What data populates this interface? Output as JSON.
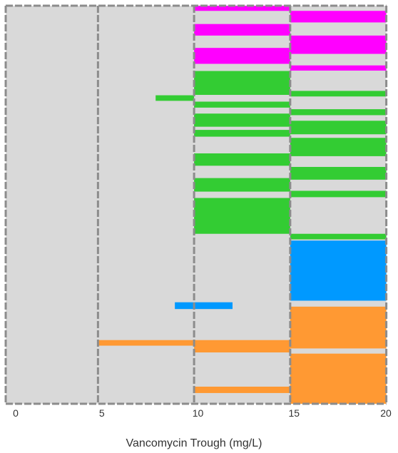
{
  "chart_data": {
    "type": "bar",
    "orientation": "horizontal-ranges",
    "xlabel": "Vancomycin Trough (mg/L)",
    "xlim": [
      0,
      20
    ],
    "xticks": [
      0,
      5,
      10,
      15,
      20
    ],
    "ylim": [
      0,
      100
    ],
    "grid": false,
    "legend": "none",
    "background_color": "#d9d9d9",
    "separator_color": "#8c8c8c",
    "separators_x": [
      0,
      4.8,
      9.8,
      14.8,
      19.8
    ],
    "colors": {
      "magenta": "#ff00ff",
      "green": "#33cc33",
      "blue": "#0099ff",
      "orange": "#ff9933"
    },
    "bars": [
      {
        "x0": 9.8,
        "x1": 14.8,
        "y0": 0.0,
        "y1": 1.3,
        "color": "magenta"
      },
      {
        "x0": 9.8,
        "x1": 14.8,
        "y0": 4.6,
        "y1": 7.5,
        "color": "magenta"
      },
      {
        "x0": 9.8,
        "x1": 14.8,
        "y0": 10.6,
        "y1": 14.6,
        "color": "magenta"
      },
      {
        "x0": 9.8,
        "x1": 14.8,
        "y0": 16.4,
        "y1": 22.4,
        "color": "green"
      },
      {
        "x0": 9.8,
        "x1": 14.8,
        "y0": 24.1,
        "y1": 25.6,
        "color": "green"
      },
      {
        "x0": 9.8,
        "x1": 14.8,
        "y0": 27.1,
        "y1": 30.4,
        "color": "green"
      },
      {
        "x0": 9.8,
        "x1": 14.8,
        "y0": 31.2,
        "y1": 32.9,
        "color": "green"
      },
      {
        "x0": 9.8,
        "x1": 14.8,
        "y0": 37.1,
        "y1": 40.2,
        "color": "green"
      },
      {
        "x0": 9.8,
        "x1": 14.8,
        "y0": 43.3,
        "y1": 46.7,
        "color": "green"
      },
      {
        "x0": 9.8,
        "x1": 14.8,
        "y0": 48.3,
        "y1": 57.3,
        "color": "green"
      },
      {
        "x0": 7.8,
        "x1": 9.8,
        "y0": 22.5,
        "y1": 23.9,
        "color": "green"
      },
      {
        "x0": 8.8,
        "x1": 11.8,
        "y0": 74.5,
        "y1": 76.2,
        "color": "blue"
      },
      {
        "x0": 4.8,
        "x1": 9.8,
        "y0": 84.0,
        "y1": 85.4,
        "color": "orange"
      },
      {
        "x0": 9.8,
        "x1": 14.8,
        "y0": 84.0,
        "y1": 87.1,
        "color": "orange"
      },
      {
        "x0": 9.8,
        "x1": 14.8,
        "y0": 95.7,
        "y1": 97.3,
        "color": "orange"
      },
      {
        "x0": 14.8,
        "x1": 19.8,
        "y0": 1.3,
        "y1": 4.2,
        "color": "magenta"
      },
      {
        "x0": 14.8,
        "x1": 19.8,
        "y0": 7.5,
        "y1": 12.1,
        "color": "magenta"
      },
      {
        "x0": 14.8,
        "x1": 19.8,
        "y0": 15.0,
        "y1": 16.3,
        "color": "magenta"
      },
      {
        "x0": 14.8,
        "x1": 19.8,
        "y0": 21.4,
        "y1": 22.8,
        "color": "green"
      },
      {
        "x0": 14.8,
        "x1": 19.8,
        "y0": 26.0,
        "y1": 27.5,
        "color": "green"
      },
      {
        "x0": 14.8,
        "x1": 19.8,
        "y0": 28.9,
        "y1": 32.3,
        "color": "green"
      },
      {
        "x0": 14.8,
        "x1": 19.8,
        "y0": 33.2,
        "y1": 37.8,
        "color": "green"
      },
      {
        "x0": 14.8,
        "x1": 19.8,
        "y0": 40.5,
        "y1": 43.7,
        "color": "green"
      },
      {
        "x0": 14.8,
        "x1": 19.8,
        "y0": 46.5,
        "y1": 48.1,
        "color": "green"
      },
      {
        "x0": 14.8,
        "x1": 19.8,
        "y0": 57.3,
        "y1": 58.7,
        "color": "green"
      },
      {
        "x0": 14.8,
        "x1": 19.8,
        "y0": 59.0,
        "y1": 74.1,
        "color": "blue"
      },
      {
        "x0": 14.8,
        "x1": 19.8,
        "y0": 75.6,
        "y1": 86.1,
        "color": "orange"
      },
      {
        "x0": 14.8,
        "x1": 19.8,
        "y0": 87.4,
        "y1": 100.0,
        "color": "orange"
      }
    ]
  }
}
